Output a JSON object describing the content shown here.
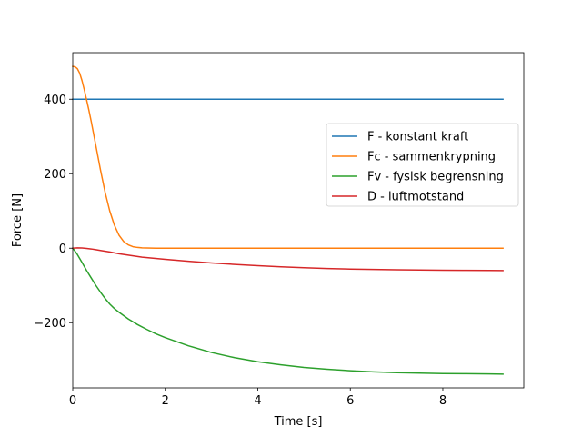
{
  "chart_data": {
    "type": "line",
    "title": "",
    "xlabel": "Time [s]",
    "ylabel": "Force [N]",
    "xlim": [
      0,
      9.75
    ],
    "ylim": [
      -375,
      525
    ],
    "x_ticks": [
      0,
      2,
      4,
      6,
      8
    ],
    "y_ticks": [
      -200,
      0,
      200,
      400
    ],
    "x_tick_labels": [
      "0",
      "2",
      "4",
      "6",
      "8"
    ],
    "y_tick_labels": [
      "−200",
      "0",
      "200",
      "400"
    ],
    "grid": false,
    "legend_position": "center-right",
    "series": [
      {
        "name": "F - konstant kraft",
        "color": "#1f77b4",
        "x": [
          0,
          9.3
        ],
        "y": [
          400,
          400
        ]
      },
      {
        "name": "Fc - sammenkrypning",
        "color": "#ff7f0e",
        "x": [
          0,
          0.05,
          0.1,
          0.15,
          0.2,
          0.25,
          0.3,
          0.35,
          0.4,
          0.5,
          0.6,
          0.7,
          0.8,
          0.9,
          1.0,
          1.1,
          1.2,
          1.3,
          1.4,
          1.5,
          1.6,
          1.8,
          2.0,
          3.0,
          4.0,
          5.0,
          6.0,
          7.0,
          8.0,
          9.3
        ],
        "y": [
          488,
          487,
          482,
          470,
          450,
          425,
          398,
          370,
          340,
          275,
          210,
          150,
          100,
          62,
          35,
          18,
          9,
          4,
          2,
          1,
          0.5,
          0,
          0,
          0,
          0,
          0,
          0,
          0,
          0,
          0
        ]
      },
      {
        "name": "Fv - fysisk begrensning",
        "color": "#2ca02c",
        "x": [
          0,
          0.05,
          0.1,
          0.2,
          0.3,
          0.4,
          0.5,
          0.6,
          0.7,
          0.8,
          0.9,
          1.0,
          1.2,
          1.4,
          1.6,
          1.8,
          2.0,
          2.5,
          3.0,
          3.5,
          4.0,
          4.5,
          5.0,
          5.5,
          6.0,
          6.5,
          7.0,
          7.5,
          8.0,
          8.5,
          9.0,
          9.3
        ],
        "y": [
          0,
          -8,
          -17,
          -38,
          -60,
          -80,
          -100,
          -118,
          -135,
          -150,
          -162,
          -172,
          -190,
          -205,
          -218,
          -230,
          -240,
          -262,
          -280,
          -294,
          -305,
          -313,
          -320,
          -325,
          -329,
          -332,
          -334,
          -335.5,
          -336.5,
          -337,
          -337.5,
          -338
        ]
      },
      {
        "name": "D - luftmotstand",
        "color": "#d62728",
        "x": [
          0,
          0.1,
          0.2,
          0.3,
          0.4,
          0.5,
          0.6,
          0.8,
          1.0,
          1.5,
          2.0,
          2.5,
          3.0,
          3.5,
          4.0,
          4.5,
          5.0,
          5.5,
          6.0,
          6.5,
          7.0,
          7.5,
          8.0,
          8.5,
          9.0,
          9.3
        ],
        "y": [
          0,
          1,
          0.5,
          -0.5,
          -2,
          -4,
          -6,
          -10,
          -15,
          -24,
          -30,
          -35,
          -39.5,
          -43.5,
          -47,
          -50,
          -52.5,
          -54.5,
          -56,
          -57,
          -58,
          -58.6,
          -59.1,
          -59.5,
          -59.8,
          -60
        ]
      }
    ]
  }
}
